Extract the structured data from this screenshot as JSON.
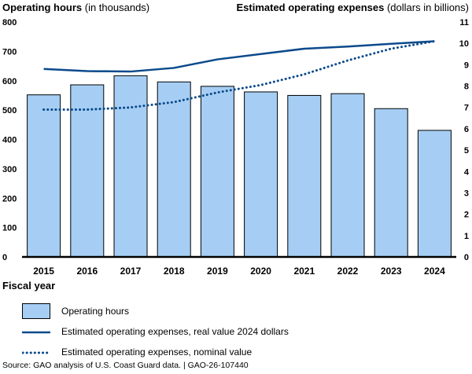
{
  "left_axis_title": {
    "bold": "Operating hours",
    "rest": "(in thousands)"
  },
  "right_axis_title": {
    "bold": "Estimated operating expenses",
    "rest": "(dollars in billions)"
  },
  "x_axis_title": "Fiscal year",
  "legend": {
    "bars": "Operating hours",
    "real": "Estimated operating expenses, real value 2024 dollars",
    "nominal": "Estimated operating expenses, nominal value"
  },
  "source": "Source: GAO analysis of U.S. Coast Guard data.  |  GAO-26-107440",
  "colors": {
    "bar_fill": "#a6cef4",
    "line": "#0b4a8b"
  },
  "chart_data": {
    "type": "bar",
    "categories": [
      "2015",
      "2016",
      "2017",
      "2018",
      "2019",
      "2020",
      "2021",
      "2022",
      "2023",
      "2024"
    ],
    "y_left": {
      "ylim": [
        0,
        800
      ],
      "ticks": [
        0,
        100,
        200,
        300,
        400,
        500,
        600,
        700,
        800
      ]
    },
    "y_right": {
      "ylim": [
        0,
        11
      ],
      "ticks": [
        0,
        1,
        2,
        3,
        4,
        5,
        6,
        7,
        8,
        9,
        10,
        11
      ]
    },
    "series": [
      {
        "name": "Operating hours",
        "kind": "bar",
        "axis": "left",
        "values": [
          552,
          586,
          617,
          596,
          581,
          562,
          550,
          556,
          505,
          431
        ]
      },
      {
        "name": "Estimated operating expenses, real value 2024 dollars",
        "kind": "line",
        "axis": "right",
        "style": "solid",
        "values": [
          8.8,
          8.7,
          8.68,
          8.85,
          9.25,
          9.5,
          9.75,
          9.85,
          9.98,
          10.1
        ]
      },
      {
        "name": "Estimated operating expenses, nominal value",
        "kind": "line",
        "axis": "right",
        "style": "dotted",
        "values": [
          6.9,
          6.9,
          7.0,
          7.25,
          7.7,
          8.05,
          8.55,
          9.2,
          9.75,
          10.1
        ]
      }
    ],
    "grid": false,
    "legend_position": "bottom"
  }
}
